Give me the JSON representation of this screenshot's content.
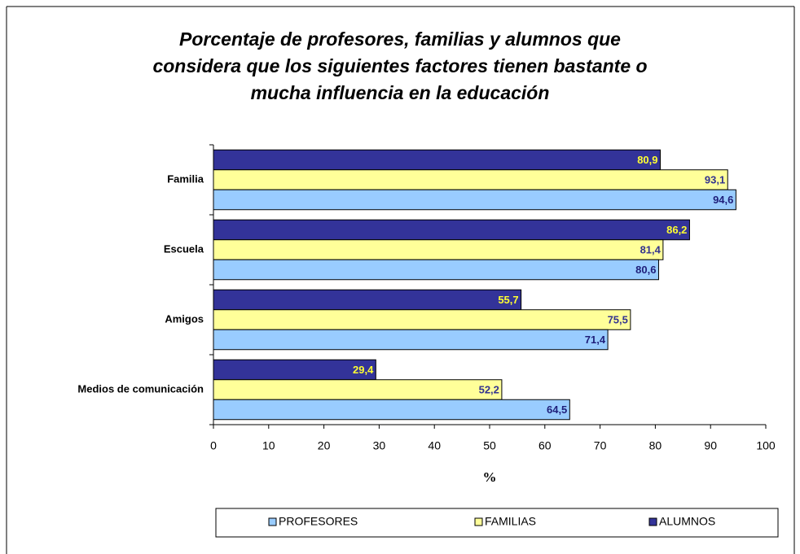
{
  "chart_data": {
    "type": "bar",
    "orientation": "horizontal",
    "title": [
      "Porcentaje de profesores, familias y alumnos que",
      "considera que los siguientes factores tienen bastante o",
      "mucha influencia en la educación"
    ],
    "categories": [
      "Familia",
      "Escuela",
      "Amigos",
      "Medios de comunicación"
    ],
    "series": [
      {
        "name": "PROFESORES",
        "color": "#99ccff",
        "label_color": "#1f1f7a",
        "values": [
          94.6,
          80.6,
          71.4,
          64.5
        ],
        "value_labels": [
          "94,6",
          "80,6",
          "71,4",
          "64,5"
        ]
      },
      {
        "name": "FAMILIAS",
        "color": "#ffff99",
        "label_color": "#33338f",
        "values": [
          93.1,
          81.4,
          75.5,
          52.2
        ],
        "value_labels": [
          "93,1",
          "81,4",
          "75,5",
          "52,2"
        ]
      },
      {
        "name": "ALUMNOS",
        "color": "#333399",
        "label_color": "#ffff33",
        "values": [
          80.9,
          86.2,
          55.7,
          29.4
        ],
        "value_labels": [
          "80,9",
          "86,2",
          "55,7",
          "29,4"
        ]
      }
    ],
    "xlabel": "%",
    "xlim": [
      0,
      100
    ],
    "xticks": [
      0,
      10,
      20,
      30,
      40,
      50,
      60,
      70,
      80,
      90,
      100
    ],
    "legend": "bottom"
  }
}
